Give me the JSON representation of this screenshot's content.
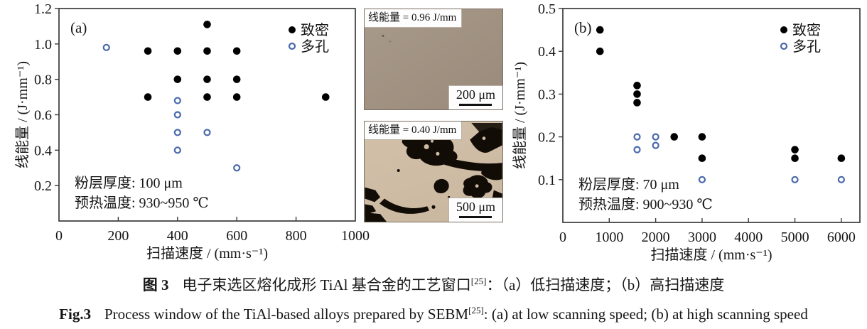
{
  "captions": {
    "cn": {
      "label": "图 3",
      "text_pre": "电子束选区熔化成形 TiAl 基合金的工艺窗口",
      "ref": "[25]",
      "text_post": "：（a）低扫描速度；（b）高扫描速度"
    },
    "en": {
      "label": "Fig.3",
      "text_pre": "Process window of the TiAl-based alloys prepared by SEBM",
      "ref": "[25]",
      "text_post": ": (a) at low scanning speed; (b) at high scanning speed"
    }
  },
  "colors": {
    "dense_marker": "#000000",
    "porous_marker": "#4a69ad",
    "reference_blue": "#2e2eb8",
    "axis": "#3a3a3a"
  },
  "micrographs": [
    {
      "label": "线能量 = 0.96 J/mm",
      "scale": "200 μm"
    },
    {
      "label": "线能量 = 0.40 J/mm",
      "scale": "500 μm"
    }
  ],
  "chart_data": [
    {
      "type": "scatter",
      "panel": "(a)",
      "xlabel": "扫描速度 / (mm·s⁻¹)",
      "ylabel": "线能量 / (J·mm⁻¹)",
      "xlim": [
        0,
        1000
      ],
      "ylim": [
        0,
        1.2
      ],
      "xticks": [
        "0",
        "200",
        "400",
        "600",
        "800",
        "1000"
      ],
      "yticks": [
        "0.2",
        "0.4",
        "0.6",
        "0.8",
        "1.0",
        "1.2"
      ],
      "grid": false,
      "legend_position": "top-right-inside",
      "annotations": [
        "粉层厚度: 100 μm",
        "预热温度: 930~950 ℃"
      ],
      "series": [
        {
          "name": "致密",
          "marker": "filled",
          "color": "#000000",
          "points": [
            [
              500,
              1.11
            ],
            [
              300,
              0.96
            ],
            [
              400,
              0.96
            ],
            [
              500,
              0.96
            ],
            [
              600,
              0.96
            ],
            [
              400,
              0.8
            ],
            [
              500,
              0.8
            ],
            [
              600,
              0.8
            ],
            [
              300,
              0.7
            ],
            [
              500,
              0.7
            ],
            [
              600,
              0.7
            ],
            [
              900,
              0.7
            ]
          ]
        },
        {
          "name": "多孔",
          "marker": "open",
          "color": "#4a69ad",
          "points": [
            [
              160,
              0.98
            ],
            [
              400,
              0.68
            ],
            [
              400,
              0.6
            ],
            [
              400,
              0.5
            ],
            [
              500,
              0.5
            ],
            [
              400,
              0.4
            ],
            [
              600,
              0.3
            ]
          ]
        }
      ]
    },
    {
      "type": "scatter",
      "panel": "(b)",
      "xlabel": "扫描速度 / (mm·s⁻¹)",
      "ylabel": "线能量 / (J·mm⁻¹)",
      "xlim": [
        0,
        6400
      ],
      "ylim": [
        0,
        0.5
      ],
      "xticks": [
        "0",
        "1000",
        "2000",
        "3000",
        "4000",
        "5000",
        "6000"
      ],
      "yticks": [
        "0.1",
        "0.2",
        "0.3",
        "0.4",
        "0.5"
      ],
      "grid": false,
      "legend_position": "top-right-inside",
      "annotations": [
        "粉层厚度: 70 μm",
        "预热温度: 900~930 ℃"
      ],
      "series": [
        {
          "name": "致密",
          "marker": "filled",
          "color": "#000000",
          "points": [
            [
              800,
              0.45
            ],
            [
              800,
              0.4
            ],
            [
              1600,
              0.32
            ],
            [
              1600,
              0.3
            ],
            [
              1600,
              0.28
            ],
            [
              2400,
              0.2
            ],
            [
              3000,
              0.2
            ],
            [
              3000,
              0.15
            ],
            [
              5000,
              0.17
            ],
            [
              5000,
              0.15
            ],
            [
              6000,
              0.15
            ]
          ]
        },
        {
          "name": "多孔",
          "marker": "open",
          "color": "#4a69ad",
          "points": [
            [
              1600,
              0.2
            ],
            [
              2000,
              0.2
            ],
            [
              2000,
              0.18
            ],
            [
              1600,
              0.17
            ],
            [
              3000,
              0.1
            ],
            [
              5000,
              0.1
            ],
            [
              6000,
              0.1
            ]
          ]
        }
      ]
    }
  ]
}
